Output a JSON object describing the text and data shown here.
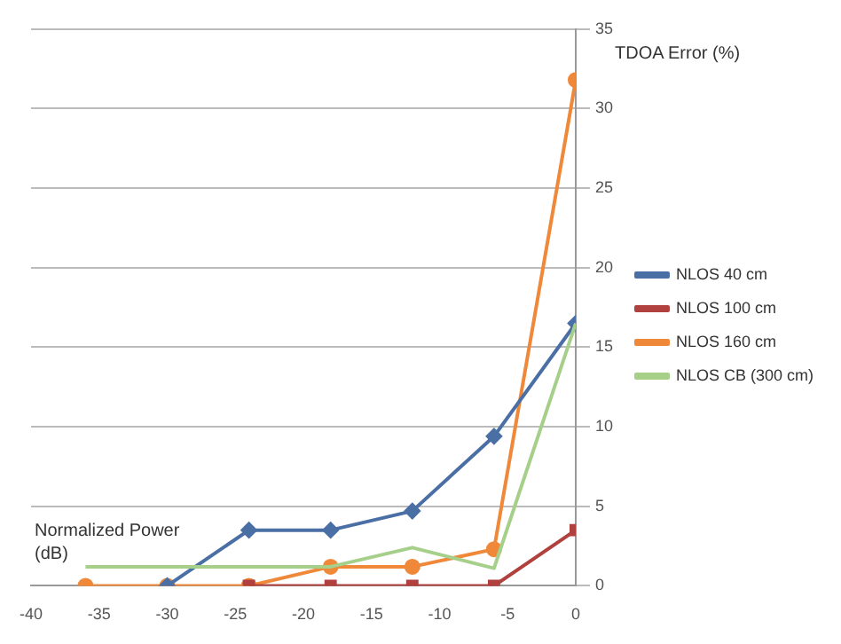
{
  "chart_data": {
    "type": "line",
    "xlabel": "Normalized Power (dB)",
    "ylabel": "TDOA Error (%)",
    "x": [
      -36,
      -30,
      -24,
      -18,
      -12,
      -6,
      0
    ],
    "series": [
      {
        "name": "NLOS 40 cm",
        "color": "#4a6fa5",
        "marker": "diamond",
        "values": [
          null,
          0,
          3.5,
          3.5,
          4.7,
          9.4,
          16.5
        ]
      },
      {
        "name": "NLOS 100 cm",
        "color": "#b0413e",
        "marker": "square",
        "values": [
          null,
          null,
          0,
          0,
          0,
          0,
          3.5
        ]
      },
      {
        "name": "NLOS 160 cm",
        "color": "#f0883a",
        "marker": "circle",
        "values": [
          0,
          0,
          0,
          1.2,
          1.2,
          2.3,
          31.8
        ]
      },
      {
        "name": "NLOS CB (300 cm)",
        "color": "#a6cf8a",
        "marker": "none",
        "values": [
          1.2,
          1.2,
          1.2,
          1.2,
          2.4,
          1.1,
          16.5
        ]
      }
    ],
    "xlim": [
      -40,
      0
    ],
    "xticks": [
      -40,
      -35,
      -30,
      -25,
      -20,
      -15,
      -10,
      -5,
      0
    ],
    "ylim": [
      0,
      35
    ],
    "yticks": [
      0,
      5,
      10,
      15,
      20,
      25,
      30,
      35
    ],
    "grid": "y",
    "legend": "right",
    "line_style": "solid"
  }
}
